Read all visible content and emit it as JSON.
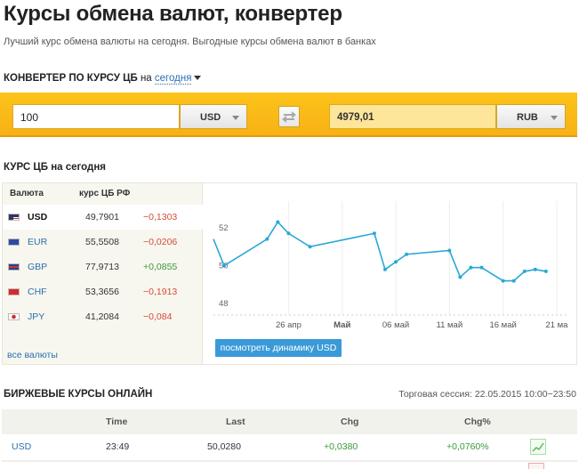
{
  "page": {
    "title": "Курсы обмена валют, конвертер",
    "subtitle": "Лучший курс обмена валюты на сегодня. Выгодные курсы обмена валют в банках"
  },
  "converter": {
    "header_prefix": "Конвертер по курсу ЦБ",
    "header_na": "на",
    "date_label": "сегодня",
    "amount_value": "100",
    "from_currency": "USD",
    "result_value": "4979,01",
    "to_currency": "RUB",
    "colors": {
      "bar": "#f8b115",
      "result_bg": "#fde69a"
    }
  },
  "cb_rates": {
    "title_prefix": "Курс ЦБ",
    "title_suffix": "на сегодня",
    "col_currency": "Валюта",
    "col_rate": "курс ЦБ РФ",
    "rows": [
      {
        "code": "USD",
        "rate": "49,7901",
        "change": "−0,1303",
        "flag_icon": "us-flag-icon"
      },
      {
        "code": "EUR",
        "rate": "55,5508",
        "change": "−0,0206",
        "flag_icon": "eu-flag-icon"
      },
      {
        "code": "GBP",
        "rate": "77,9713",
        "change": "+0,0855",
        "flag_icon": "gb-flag-icon"
      },
      {
        "code": "CHF",
        "rate": "53,3656",
        "change": "−0,1913",
        "flag_icon": "ch-flag-icon"
      },
      {
        "code": "JPY",
        "rate": "41,2084",
        "change": "−0,084",
        "flag_icon": "jp-flag-icon"
      }
    ],
    "all_link": "все валюты",
    "dynamics_button": "посмотреть динамику USD"
  },
  "chart_data": {
    "type": "line",
    "title": "",
    "xlabel": "",
    "ylabel": "",
    "ylim": [
      47.4,
      53.4
    ],
    "yticks": [
      "52",
      "50",
      "48"
    ],
    "ytick_values": [
      52,
      50,
      48
    ],
    "xticks": [
      {
        "label": "26 апр",
        "x": 12
      },
      {
        "label": "Май",
        "x": 17
      },
      {
        "label": "06 май",
        "x": 22
      },
      {
        "label": "11 май",
        "x": 27
      },
      {
        "label": "16 май",
        "x": 32
      },
      {
        "label": "21 ма",
        "x": 37
      }
    ],
    "grid": true,
    "series": [
      {
        "color": "#29a8d6",
        "x": [
          5,
          6,
          10,
          11,
          12,
          14,
          20,
          21,
          22,
          23,
          27,
          28,
          29,
          30,
          32,
          33,
          34,
          35,
          36
        ],
        "y": [
          51.4,
          50.0,
          51.4,
          52.3,
          51.7,
          51.0,
          51.7,
          49.8,
          50.2,
          50.6,
          50.8,
          49.4,
          49.9,
          49.9,
          49.2,
          49.2,
          49.7,
          49.8,
          49.7
        ]
      }
    ]
  },
  "live": {
    "title": "Биржевые курсы онлайн",
    "session": "Торговая сессия: 22.05.2015 10:00−23:50",
    "columns": [
      "Time",
      "Last",
      "Chg",
      "Chg%"
    ],
    "rows": [
      {
        "name": "USD",
        "time": "23:49",
        "last": "50,0280",
        "chg": "+0,0380",
        "chg_pct": "+0,0760%"
      }
    ]
  }
}
